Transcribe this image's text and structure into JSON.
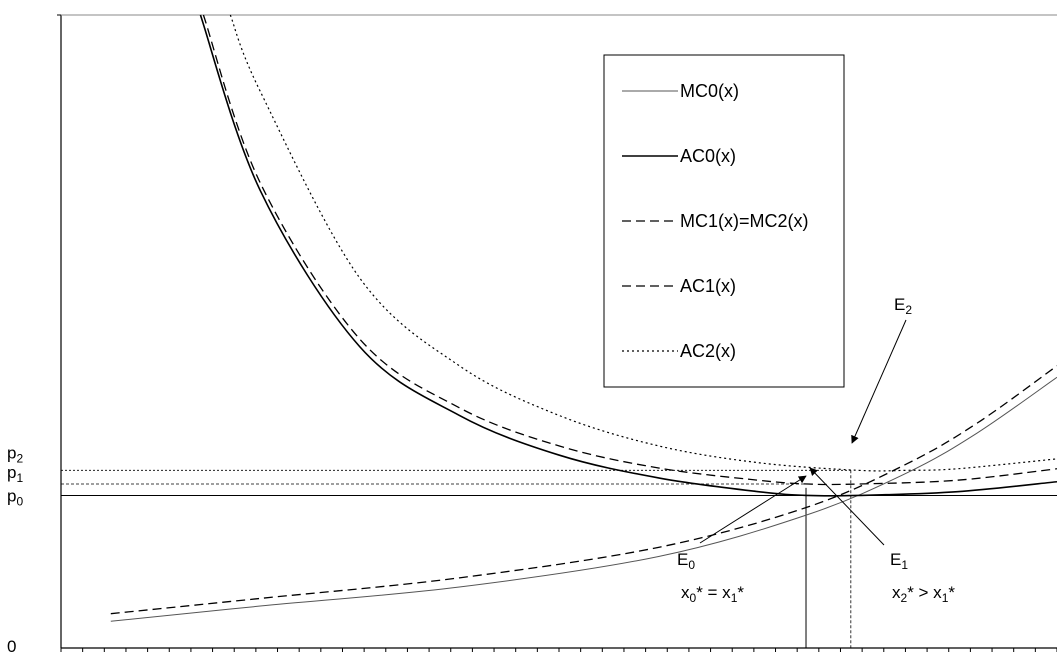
{
  "chart_data": {
    "type": "line",
    "title": "",
    "xlabel": "",
    "ylabel": "",
    "legend": {
      "placement": "top-right",
      "entries": [
        "MC0(x)",
        "AC0(x)",
        "MC1(x)=MC2(x)",
        "AC1(x)",
        "AC2(x)"
      ]
    },
    "y_ticks": [
      {
        "base": "p",
        "sub": "2",
        "value": 2.33
      },
      {
        "base": "p",
        "sub": "1",
        "value": 2.15
      },
      {
        "base": "p",
        "sub": "0",
        "value": 2.0
      },
      {
        "base": "0",
        "sub": "",
        "value": 0
      }
    ],
    "x_range": [
      0,
      1
    ],
    "y_range": [
      0,
      8.3
    ],
    "grid": false,
    "series": [
      {
        "name": "MC0(x)",
        "style": "solid-thin",
        "x": [
          0.05,
          0.2,
          0.4,
          0.6,
          0.75,
          0.85,
          0.92,
          1.0
        ],
        "values": [
          0.35,
          0.55,
          0.8,
          1.2,
          1.75,
          2.3,
          2.82,
          3.55
        ]
      },
      {
        "name": "AC0(x)",
        "style": "solid",
        "x": [
          0.14,
          0.2,
          0.3,
          0.4,
          0.5,
          0.6,
          0.7,
          0.75,
          0.8,
          0.9,
          1.0
        ],
        "values": [
          8.3,
          6.0,
          3.95,
          3.05,
          2.53,
          2.23,
          2.05,
          2.0,
          2.0,
          2.05,
          2.18
        ]
      },
      {
        "name": "MC1(x)=MC2(x)",
        "style": "dashed",
        "x": [
          0.05,
          0.2,
          0.4,
          0.6,
          0.75,
          0.85,
          0.92,
          1.0
        ],
        "values": [
          0.45,
          0.65,
          0.92,
          1.32,
          1.85,
          2.42,
          2.95,
          3.7
        ]
      },
      {
        "name": "AC1(x)",
        "style": "dashed",
        "x": [
          0.143,
          0.2,
          0.3,
          0.4,
          0.5,
          0.6,
          0.7,
          0.75,
          0.8,
          0.9,
          1.0
        ],
        "values": [
          8.3,
          6.1,
          4.05,
          3.15,
          2.65,
          2.36,
          2.2,
          2.15,
          2.15,
          2.2,
          2.35
        ]
      },
      {
        "name": "AC2(x)",
        "style": "dotted",
        "x": [
          0.17,
          0.2,
          0.3,
          0.4,
          0.5,
          0.6,
          0.7,
          0.8,
          0.85,
          0.9,
          1.0
        ],
        "values": [
          8.3,
          7.3,
          4.85,
          3.7,
          3.05,
          2.65,
          2.43,
          2.33,
          2.33,
          2.35,
          2.48
        ]
      }
    ],
    "annotations": [
      {
        "base": "E",
        "sub": "0",
        "rest": ""
      },
      {
        "base": "E",
        "sub": "1",
        "rest": ""
      },
      {
        "base": "E",
        "sub": "2",
        "rest": ""
      }
    ],
    "x_labels": [
      {
        "text_a": "x",
        "sub_a": "0",
        "mid": "* = x",
        "sub_b": "1",
        "end": "*"
      },
      {
        "text_a": "x",
        "sub_a": "2",
        "mid": "* > x",
        "sub_b": "1",
        "end": "*"
      }
    ],
    "x_tick_count": 46
  }
}
